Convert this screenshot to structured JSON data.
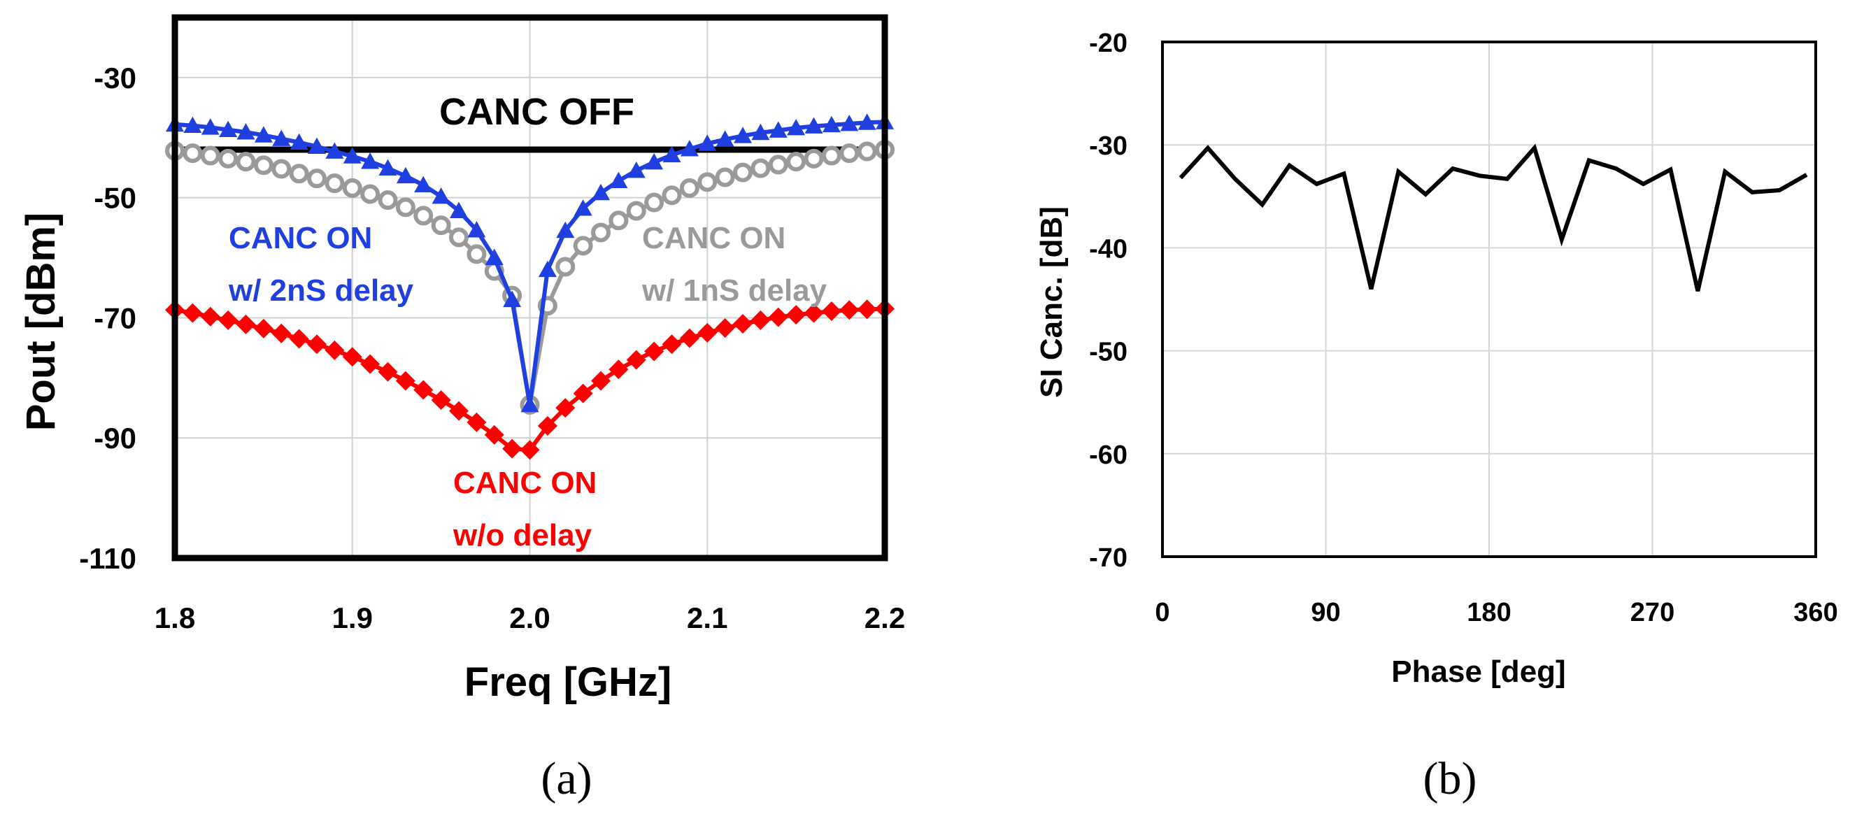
{
  "chart_data": [
    {
      "type": "line",
      "id": "a",
      "caption": "(a)",
      "xlabel": "Freq [GHz]",
      "ylabel": "Pout [dBm]",
      "xlim": [
        1.8,
        2.2
      ],
      "ylim": [
        -110,
        -20
      ],
      "xticks": [
        "1.8",
        "1.9",
        "2.0",
        "2.1",
        "2.2"
      ],
      "yticks": [
        "-30",
        "-50",
        "-70",
        "-90",
        "-110"
      ],
      "grid": true,
      "annotations": {
        "off": "CANC OFF",
        "on_2ns_1": "CANC ON",
        "on_2ns_2": "w/ 2nS delay",
        "on_1ns_1": "CANC ON",
        "on_1ns_2": "w/ 1nS delay",
        "on_0_1": "CANC ON",
        "on_0_2": "w/o delay"
      },
      "series": [
        {
          "name": "CANC OFF",
          "color": "#000000",
          "marker": "none",
          "x": [
            1.8,
            2.2
          ],
          "y": [
            -42,
            -42
          ]
        },
        {
          "name": "CANC ON w/ 1nS delay",
          "color": "#9a9a9a",
          "marker": "circle",
          "x": [
            1.8,
            1.81,
            1.82,
            1.83,
            1.84,
            1.85,
            1.86,
            1.87,
            1.88,
            1.89,
            1.9,
            1.91,
            1.92,
            1.93,
            1.94,
            1.95,
            1.96,
            1.97,
            1.98,
            1.99,
            2.0,
            2.01,
            2.02,
            2.03,
            2.04,
            2.05,
            2.06,
            2.07,
            2.08,
            2.09,
            2.1,
            2.11,
            2.12,
            2.13,
            2.14,
            2.15,
            2.16,
            2.17,
            2.18,
            2.19,
            2.2
          ],
          "y": [
            -42.2,
            -42.6,
            -43.0,
            -43.5,
            -44.0,
            -44.6,
            -45.2,
            -46.0,
            -46.8,
            -47.6,
            -48.4,
            -49.4,
            -50.4,
            -51.6,
            -53.0,
            -54.6,
            -56.6,
            -59.4,
            -62.2,
            -66.3,
            -84.5,
            -68.0,
            -61.5,
            -58.0,
            -55.8,
            -53.8,
            -52.2,
            -50.8,
            -49.6,
            -48.4,
            -47.4,
            -46.6,
            -45.8,
            -45.1,
            -44.5,
            -44.0,
            -43.5,
            -43.0,
            -42.6,
            -42.3,
            -42.0
          ]
        },
        {
          "name": "CANC ON w/ 2nS delay",
          "color": "#1f3fe0",
          "marker": "triangle",
          "x": [
            1.8,
            1.81,
            1.82,
            1.83,
            1.84,
            1.85,
            1.86,
            1.87,
            1.88,
            1.89,
            1.9,
            1.91,
            1.92,
            1.93,
            1.94,
            1.95,
            1.96,
            1.97,
            1.98,
            1.99,
            2.0,
            2.01,
            2.02,
            2.03,
            2.04,
            2.05,
            2.06,
            2.07,
            2.08,
            2.09,
            2.1,
            2.11,
            2.12,
            2.13,
            2.14,
            2.15,
            2.16,
            2.17,
            2.18,
            2.19,
            2.2
          ],
          "y": [
            -37.8,
            -38.0,
            -38.3,
            -38.7,
            -39.1,
            -39.6,
            -40.2,
            -40.8,
            -41.5,
            -42.3,
            -43.1,
            -44.0,
            -45.1,
            -46.4,
            -47.9,
            -49.8,
            -52.2,
            -55.4,
            -60.0,
            -67.0,
            -84.5,
            -62.0,
            -55.5,
            -51.8,
            -49.2,
            -47.2,
            -45.5,
            -44.1,
            -42.9,
            -41.9,
            -41.0,
            -40.3,
            -39.7,
            -39.2,
            -38.8,
            -38.4,
            -38.1,
            -37.9,
            -37.7,
            -37.5,
            -37.4
          ]
        },
        {
          "name": "CANC ON w/o delay",
          "color": "#ff0000",
          "marker": "diamond",
          "x": [
            1.8,
            1.81,
            1.82,
            1.83,
            1.84,
            1.85,
            1.86,
            1.87,
            1.88,
            1.89,
            1.9,
            1.91,
            1.92,
            1.93,
            1.94,
            1.95,
            1.96,
            1.97,
            1.98,
            1.99,
            2.0,
            2.01,
            2.02,
            2.03,
            2.04,
            2.05,
            2.06,
            2.07,
            2.08,
            2.09,
            2.1,
            2.11,
            2.12,
            2.13,
            2.14,
            2.15,
            2.16,
            2.17,
            2.18,
            2.19,
            2.2
          ],
          "y": [
            -68.7,
            -69.2,
            -69.8,
            -70.4,
            -71.1,
            -71.8,
            -72.6,
            -73.5,
            -74.4,
            -75.4,
            -76.5,
            -77.7,
            -79.0,
            -80.5,
            -82.0,
            -83.7,
            -85.5,
            -87.4,
            -89.5,
            -91.8,
            -92.0,
            -88.0,
            -85.0,
            -82.6,
            -80.5,
            -78.6,
            -77.0,
            -75.6,
            -74.4,
            -73.4,
            -72.5,
            -71.7,
            -71.0,
            -70.4,
            -69.9,
            -69.5,
            -69.2,
            -68.9,
            -68.7,
            -68.6,
            -68.5
          ]
        }
      ]
    },
    {
      "type": "line",
      "id": "b",
      "caption": "(b)",
      "xlabel": "Phase [deg]",
      "ylabel": "SI Canc.  [dB]",
      "xlim": [
        0,
        360
      ],
      "ylim": [
        -70,
        -20
      ],
      "xticks": [
        "0",
        "90",
        "180",
        "270",
        "360"
      ],
      "yticks": [
        "-20",
        "-30",
        "-40",
        "-50",
        "-60",
        "-70"
      ],
      "grid": true,
      "series": [
        {
          "name": "SI Canc.",
          "color": "#000000",
          "marker": "none",
          "x": [
            10,
            25,
            40,
            55,
            70,
            85,
            100,
            115,
            130,
            145,
            160,
            175,
            190,
            205,
            220,
            235,
            250,
            265,
            280,
            295,
            310,
            325,
            340,
            355
          ],
          "y": [
            -33.2,
            -30.3,
            -33.3,
            -35.8,
            -32.0,
            -33.8,
            -32.8,
            -44.0,
            -32.6,
            -34.8,
            -32.3,
            -33.0,
            -33.3,
            -30.3,
            -39.2,
            -31.5,
            -32.3,
            -33.8,
            -32.4,
            -44.2,
            -32.6,
            -34.6,
            -34.4,
            -32.9
          ]
        }
      ]
    }
  ]
}
